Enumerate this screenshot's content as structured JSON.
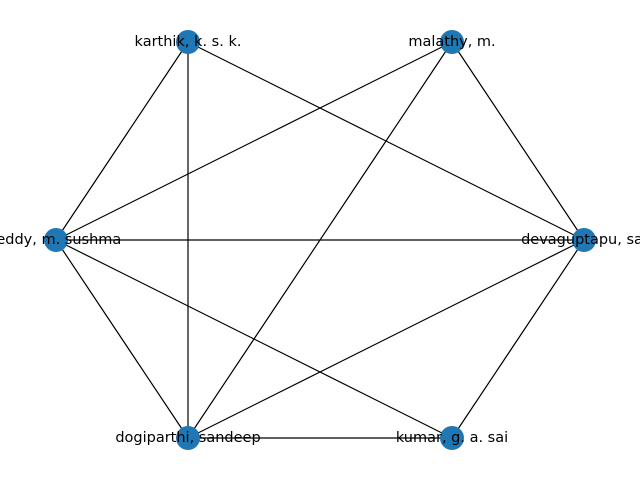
{
  "graph": {
    "node_color": "#1f77b4",
    "edge_color": "#000000",
    "nodes": [
      {
        "id": "karthik",
        "label": "karthik, k. s. k."
      },
      {
        "id": "malathy",
        "label": "malathy, m."
      },
      {
        "id": "reddy",
        "label": "reddy, m. sushma"
      },
      {
        "id": "devaguptapu",
        "label": "devaguptapu, sai"
      },
      {
        "id": "dogiparthi",
        "label": "dogiparthi, sandeep"
      },
      {
        "id": "kumar",
        "label": "kumar, g. a. sai"
      }
    ],
    "edges": [
      [
        "karthik",
        "reddy"
      ],
      [
        "karthik",
        "dogiparthi"
      ],
      [
        "karthik",
        "devaguptapu"
      ],
      [
        "malathy",
        "reddy"
      ],
      [
        "malathy",
        "dogiparthi"
      ],
      [
        "malathy",
        "devaguptapu"
      ],
      [
        "reddy",
        "devaguptapu"
      ],
      [
        "reddy",
        "dogiparthi"
      ],
      [
        "reddy",
        "kumar"
      ],
      [
        "devaguptapu",
        "dogiparthi"
      ],
      [
        "devaguptapu",
        "kumar"
      ],
      [
        "dogiparthi",
        "kumar"
      ]
    ]
  }
}
